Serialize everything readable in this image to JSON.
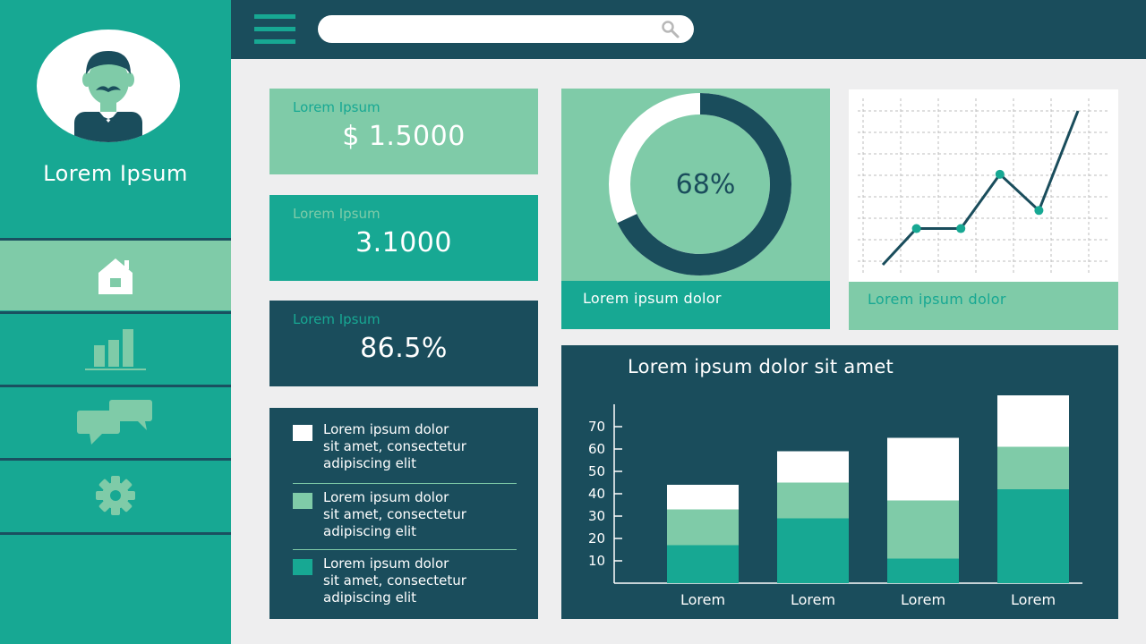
{
  "profile": {
    "name": "Lorem Ipsum"
  },
  "nav": [
    {
      "icon": "home-icon",
      "active": true
    },
    {
      "icon": "bar-chart-icon",
      "active": false
    },
    {
      "icon": "chat-bubbles-icon",
      "active": false
    },
    {
      "icon": "gear-icon",
      "active": false
    }
  ],
  "search": {
    "value": "",
    "placeholder": ""
  },
  "stats": [
    {
      "label": "Lorem Ipsum",
      "value": "$ 1.5000"
    },
    {
      "label": "Lorem Ipsum",
      "value": "3.1000"
    },
    {
      "label": "Lorem Ipsum",
      "value": "86.5%"
    }
  ],
  "legend": [
    {
      "text_lines": [
        "Lorem ipsum dolor",
        "sit amet, consectetur",
        "adipiscing elit"
      ],
      "color": "#ffffff"
    },
    {
      "text_lines": [
        "Lorem ipsum dolor",
        "sit amet, consectetur",
        "adipiscing elit"
      ],
      "color": "#7fcba8"
    },
    {
      "text_lines": [
        "Lorem ipsum dolor",
        "sit amet, consectetur",
        "adipiscing elit"
      ],
      "color": "#17a893"
    }
  ],
  "donut": {
    "value": 68,
    "label": "68%",
    "footer": "Lorem ipsum dolor"
  },
  "line_chart": {
    "footer": "Lorem ipsum dolor",
    "values": [
      0,
      2,
      2,
      5,
      3,
      8.5
    ]
  },
  "colors": {
    "dark": "#1a4d5c",
    "teal": "#17a893",
    "mint": "#7fcba8",
    "white": "#ffffff"
  },
  "chart_data": {
    "type": "bar",
    "title": "Lorem ipsum dolor sit amet",
    "categories": [
      "Lorem",
      "Lorem",
      "Lorem",
      "Lorem"
    ],
    "y_ticks": [
      10,
      20,
      30,
      40,
      50,
      60,
      70
    ],
    "ylim": [
      0,
      80
    ],
    "stacked": true,
    "series": [
      {
        "color": "#17a893",
        "values": [
          17,
          29,
          11,
          42
        ]
      },
      {
        "color": "#7fcba8",
        "values": [
          16,
          16,
          26,
          19
        ]
      },
      {
        "color": "#ffffff",
        "values": [
          11,
          14,
          28,
          23
        ]
      }
    ]
  }
}
